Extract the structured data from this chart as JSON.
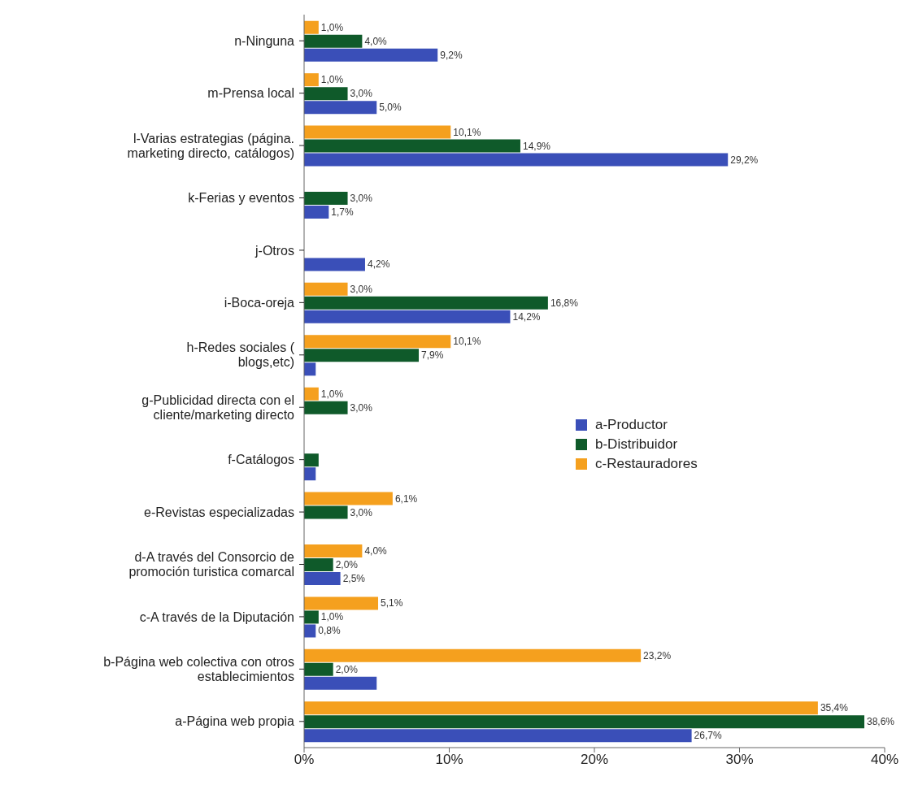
{
  "chart_data": {
    "type": "bar",
    "orientation": "horizontal",
    "categories": [
      "n-Ninguna",
      "m-Prensa local",
      "l-Varias estrategias (página.\nmarketing directo, catálogos)",
      "k-Ferias y eventos",
      "j-Otros",
      "i-Boca-oreja",
      "h-Redes sociales (\nblogs,etc)",
      "g-Publicidad directa con el\ncliente/marketing directo",
      "f-Catálogos",
      "e-Revistas especializadas",
      "d-A través del Consorcio de\npromoción turistica comarcal",
      "c-A través de la Diputación",
      "b-Página web colectiva con otros\nestablecimientos",
      "a-Página web propia"
    ],
    "series": [
      {
        "name": "a-Productor",
        "color": "#3a4fb8",
        "values": [
          9.2,
          5.0,
          29.2,
          1.7,
          4.2,
          14.2,
          0.8,
          null,
          0.8,
          null,
          2.5,
          0.8,
          5.0,
          26.7
        ],
        "value_labels": [
          "9,2%",
          "5,0%",
          "29,2%",
          "1,7%",
          "4,2%",
          "14,2%",
          null,
          null,
          null,
          null,
          "2,5%",
          "0,8%",
          null,
          "26,7%"
        ]
      },
      {
        "name": "b-Distribuidor",
        "color": "#0f5a2a",
        "values": [
          4.0,
          3.0,
          14.9,
          3.0,
          null,
          16.8,
          7.9,
          3.0,
          1.0,
          3.0,
          2.0,
          1.0,
          2.0,
          38.6
        ],
        "value_labels": [
          "4,0%",
          "3,0%",
          "14,9%",
          "3,0%",
          null,
          "16,8%",
          "7,9%",
          "3,0%",
          null,
          "3,0%",
          "2,0%",
          "1,0%",
          "2,0%",
          "38,6%"
        ]
      },
      {
        "name": "c-Restauradores",
        "color": "#f5a01e",
        "values": [
          1.0,
          1.0,
          10.1,
          null,
          null,
          3.0,
          10.1,
          1.0,
          null,
          6.1,
          4.0,
          5.1,
          23.2,
          35.4
        ],
        "value_labels": [
          "1,0%",
          "1,0%",
          "10,1%",
          null,
          null,
          "3,0%",
          "10,1%",
          "1,0%",
          null,
          "6,1%",
          "4,0%",
          "5,1%",
          "23,2%",
          "35,4%"
        ]
      }
    ],
    "xlim": [
      0,
      40
    ],
    "xticks": [
      {
        "value": 0,
        "label": "0%"
      },
      {
        "value": 10,
        "label": "10%"
      },
      {
        "value": 20,
        "label": "20%"
      },
      {
        "value": 30,
        "label": "30%"
      },
      {
        "value": 40,
        "label": "40%"
      }
    ],
    "grid": false,
    "legend": "right"
  }
}
